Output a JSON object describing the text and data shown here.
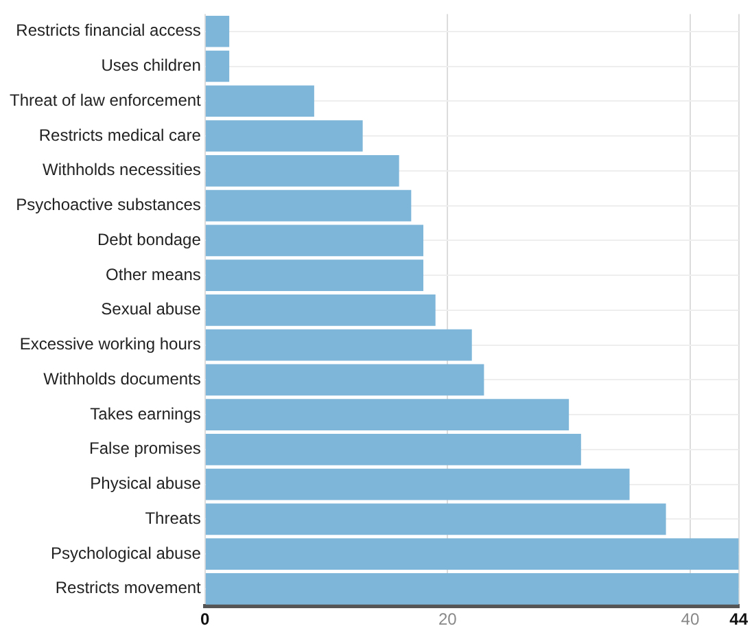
{
  "chart_data": {
    "type": "bar",
    "orientation": "horizontal",
    "categories": [
      "Restricts financial access",
      "Uses children",
      "Threat of law enforcement",
      "Restricts medical care",
      "Withholds necessities",
      "Psychoactive substances",
      "Debt bondage",
      "Other means",
      "Sexual abuse",
      "Excessive working hours",
      "Withholds documents",
      "Takes earnings",
      "False promises",
      "Physical abuse",
      "Threats",
      "Psychological abuse",
      "Restricts movement"
    ],
    "values": [
      2,
      2,
      9,
      13,
      16,
      17,
      18,
      18,
      19,
      22,
      23,
      30,
      31,
      35,
      38,
      44,
      44
    ],
    "color": "#7eb6d9",
    "xlim": [
      0,
      44
    ],
    "xticks": [
      0,
      20,
      40,
      44
    ],
    "grid": true
  }
}
